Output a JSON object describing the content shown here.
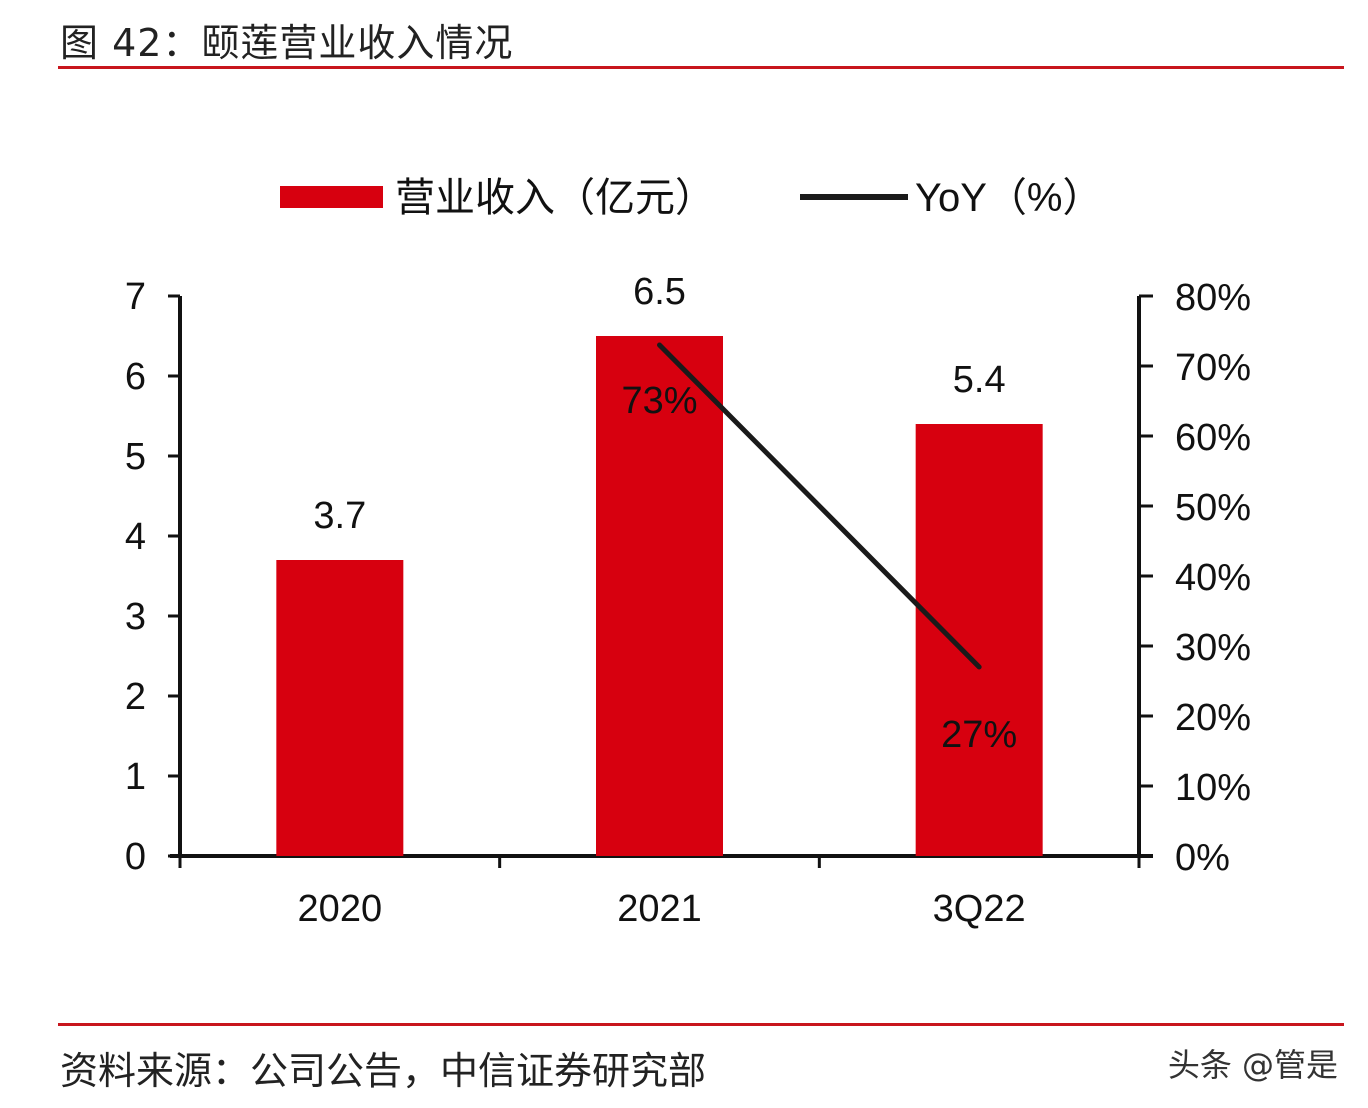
{
  "figure": {
    "title": "图 42：颐莲营业收入情况",
    "source": "资料来源：公司公告，中信证券研究部",
    "watermark": "头条 @管是"
  },
  "colors": {
    "bar": "#d7000f",
    "line": "#1a1a1a",
    "accent": "#c8161d"
  },
  "chart_data": {
    "type": "bar",
    "categories": [
      "2020",
      "2021",
      "3Q22"
    ],
    "series": [
      {
        "name": "营业收入（亿元）",
        "type": "bar",
        "axis": "left",
        "values": [
          3.7,
          6.5,
          5.4
        ],
        "labels": [
          "3.7",
          "6.5",
          "5.4"
        ]
      },
      {
        "name": "YoY（%）",
        "type": "line",
        "axis": "right",
        "values": [
          null,
          73,
          27
        ],
        "labels": [
          "",
          "73%",
          "27%"
        ]
      }
    ],
    "y_left": {
      "lim": [
        0,
        7
      ],
      "ticks": [
        "0",
        "1",
        "2",
        "3",
        "4",
        "5",
        "6",
        "7"
      ]
    },
    "y_right": {
      "lim": [
        0,
        80
      ],
      "ticks": [
        "0%",
        "10%",
        "20%",
        "30%",
        "40%",
        "50%",
        "60%",
        "70%",
        "80%"
      ]
    },
    "legend": {
      "position": "top-center"
    },
    "grid": false
  }
}
